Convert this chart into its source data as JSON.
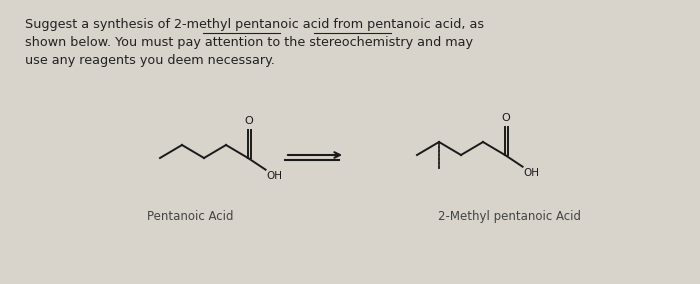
{
  "background_color": "#d8d4cc",
  "text_color": "#222222",
  "title_lines": [
    "Suggest a synthesis of 2-methyl pentanoic acid from pentanoic acid, as",
    "shown below. You must pay attention to the stereochemistry and may",
    "use any reagents you deem necessary."
  ],
  "label1": "Pentanoic Acid",
  "label2": "2-Methyl pentanoic Acid",
  "fig_width": 7.0,
  "fig_height": 2.84,
  "dpi": 100,
  "struct_color": "#1a1a1a",
  "arrow_color": "#1a1a1a"
}
